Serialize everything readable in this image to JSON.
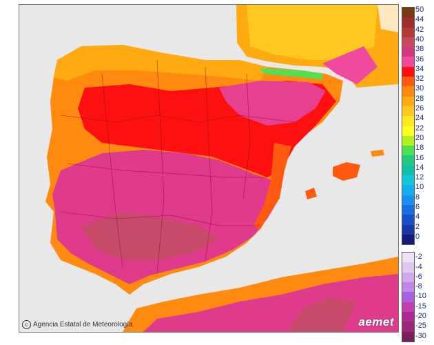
{
  "map": {
    "credit": "Agencia Estatal de Meteorología",
    "logo": "aemet",
    "copyright_icon": "copyright-icon"
  },
  "legend": {
    "positive": [
      {
        "label": "50",
        "color": "#7a3a10"
      },
      {
        "label": "44",
        "color": "#9e2e2e"
      },
      {
        "label": "42",
        "color": "#b53a3a"
      },
      {
        "label": "40",
        "color": "#c84a5a"
      },
      {
        "label": "38",
        "color": "#d03a7a"
      },
      {
        "label": "36",
        "color": "#f04aa0"
      },
      {
        "label": "34",
        "color": "#ff1010"
      },
      {
        "label": "32",
        "color": "#ff5a10"
      },
      {
        "label": "30",
        "color": "#ff8a10"
      },
      {
        "label": "28",
        "color": "#ffaa10"
      },
      {
        "label": "26",
        "color": "#ffc820"
      },
      {
        "label": "24",
        "color": "#ffe820"
      },
      {
        "label": "22",
        "color": "#ffff20"
      },
      {
        "label": "20",
        "color": "#b0f020"
      },
      {
        "label": "18",
        "color": "#50e050"
      },
      {
        "label": "16",
        "color": "#20c880"
      },
      {
        "label": "14",
        "color": "#10c0a8"
      },
      {
        "label": "12",
        "color": "#10c8d8"
      },
      {
        "label": "10",
        "color": "#10b0f0"
      },
      {
        "label": "8",
        "color": "#1890f0"
      },
      {
        "label": "6",
        "color": "#1870e0"
      },
      {
        "label": "4",
        "color": "#1850c8"
      },
      {
        "label": "2",
        "color": "#1838a8"
      },
      {
        "label": "0",
        "color": "#101c78"
      }
    ],
    "negative": [
      {
        "label": "-2",
        "color": "#f0e0f8"
      },
      {
        "label": "-4",
        "color": "#e0c8f0"
      },
      {
        "label": "-6",
        "color": "#d0a8ec"
      },
      {
        "label": "-8",
        "color": "#c088e8"
      },
      {
        "label": "-10",
        "color": "#a860e0"
      },
      {
        "label": "-15",
        "color": "#c040b0"
      },
      {
        "label": "-20",
        "color": "#b02890"
      },
      {
        "label": "-25",
        "color": "#9a2878"
      },
      {
        "label": "-30",
        "color": "#7a2060"
      }
    ]
  }
}
